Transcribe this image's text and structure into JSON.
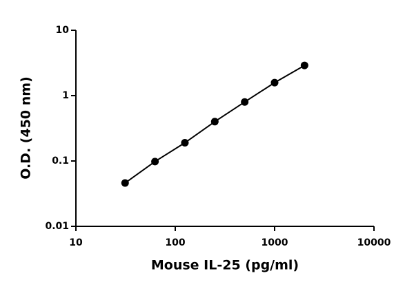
{
  "chart_data": {
    "type": "scatter-line",
    "xlabel": "Mouse IL-25 (pg/ml)",
    "ylabel": "O.D. (450 nm)",
    "x": [
      31.25,
      62.5,
      125,
      250,
      500,
      1000,
      2000
    ],
    "values": [
      0.046,
      0.098,
      0.19,
      0.4,
      0.8,
      1.58,
      2.9
    ],
    "color": "#000000",
    "xlim": [
      10,
      10000
    ],
    "xticks": [
      10,
      100,
      1000,
      10000
    ],
    "ylim": [
      0.01,
      10
    ],
    "yticks": [
      0.01,
      0.1,
      1,
      10
    ],
    "xscale": "log",
    "yscale": "log",
    "grid": false
  }
}
